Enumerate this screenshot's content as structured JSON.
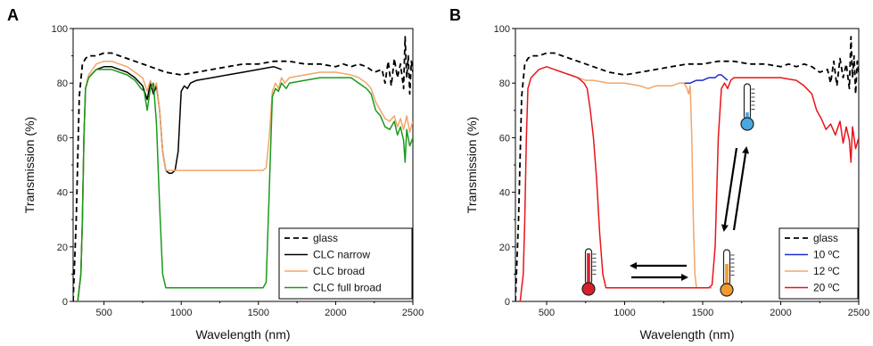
{
  "chart_data": [
    {
      "type": "line",
      "panel_label": "A",
      "xlabel": "Wavelength (nm)",
      "ylabel": "Transmission (%)",
      "xlim": [
        300,
        2500
      ],
      "ylim": [
        0,
        100
      ],
      "xticks": [
        500,
        1000,
        1500,
        2000,
        2500
      ],
      "yticks": [
        0,
        20,
        40,
        60,
        80,
        100
      ],
      "legend_position": "bottom-right",
      "series": [
        {
          "name": "glass",
          "color": "#000000",
          "dashed": true,
          "x": [
            300,
            320,
            340,
            360,
            380,
            400,
            450,
            500,
            550,
            600,
            700,
            800,
            900,
            1000,
            1100,
            1200,
            1300,
            1400,
            1500,
            1600,
            1700,
            1800,
            1900,
            2000,
            2050,
            2100,
            2150,
            2200,
            2250,
            2300,
            2320,
            2340,
            2360,
            2380,
            2400,
            2420,
            2440,
            2450,
            2460,
            2470,
            2480,
            2490,
            2500
          ],
          "y": [
            0,
            30,
            75,
            87,
            89,
            90,
            90,
            91,
            91,
            90,
            88,
            86,
            84,
            83,
            84,
            85,
            86,
            87,
            87,
            88,
            88,
            87,
            87,
            86,
            87,
            86,
            87,
            86,
            84,
            85,
            80,
            88,
            79,
            89,
            82,
            87,
            78,
            97,
            82,
            90,
            76,
            88,
            84
          ]
        },
        {
          "name": "CLC narrow",
          "color": "#000000",
          "dashed": false,
          "x": [
            330,
            350,
            360,
            370,
            380,
            400,
            450,
            500,
            550,
            600,
            650,
            700,
            750,
            780,
            800,
            820,
            840,
            860,
            880,
            900,
            920,
            940,
            960,
            980,
            1000,
            1020,
            1040,
            1060,
            1100,
            1200,
            1300,
            1400,
            1500,
            1600,
            1650
          ],
          "y": [
            0,
            10,
            30,
            60,
            78,
            82,
            85,
            86,
            86,
            85,
            84,
            82,
            79,
            74,
            80,
            76,
            79,
            70,
            55,
            48,
            47,
            47,
            48,
            55,
            77,
            79,
            78,
            80,
            81,
            82,
            83,
            84,
            85,
            86,
            85
          ]
        },
        {
          "name": "CLC broad",
          "color": "#f2a56b",
          "dashed": false,
          "x": [
            330,
            350,
            360,
            370,
            380,
            400,
            450,
            500,
            550,
            600,
            650,
            700,
            750,
            780,
            800,
            820,
            840,
            860,
            880,
            900,
            920,
            1000,
            1100,
            1200,
            1300,
            1400,
            1500,
            1530,
            1550,
            1570,
            1590,
            1610,
            1630,
            1650,
            1670,
            1700,
            1800,
            1900,
            2000,
            2100,
            2150,
            2200,
            2230,
            2260,
            2290,
            2320,
            2350,
            2380,
            2400,
            2420,
            2440,
            2460,
            2480,
            2500
          ],
          "y": [
            0,
            10,
            30,
            60,
            78,
            83,
            87,
            88,
            88,
            87,
            86,
            84,
            82,
            77,
            81,
            78,
            80,
            70,
            55,
            48,
            48,
            48,
            48,
            48,
            48,
            48,
            48,
            48,
            49,
            60,
            77,
            80,
            78,
            82,
            80,
            82,
            83,
            84,
            84,
            83,
            82,
            80,
            78,
            73,
            70,
            67,
            66,
            68,
            64,
            67,
            63,
            68,
            62,
            66
          ]
        },
        {
          "name": "CLC full broad",
          "color": "#1a9a1a",
          "dashed": false,
          "x": [
            330,
            350,
            360,
            370,
            380,
            400,
            450,
            500,
            550,
            600,
            650,
            700,
            740,
            760,
            780,
            800,
            820,
            840,
            860,
            880,
            900,
            1000,
            1100,
            1200,
            1300,
            1400,
            1500,
            1530,
            1550,
            1570,
            1590,
            1610,
            1630,
            1650,
            1680,
            1700,
            1800,
            1900,
            2000,
            2100,
            2150,
            2200,
            2230,
            2260,
            2290,
            2320,
            2350,
            2380,
            2400,
            2420,
            2440,
            2450,
            2460,
            2480,
            2500
          ],
          "y": [
            0,
            10,
            30,
            60,
            78,
            82,
            85,
            85,
            85,
            84,
            83,
            81,
            78,
            77,
            70,
            78,
            80,
            65,
            35,
            10,
            5,
            5,
            5,
            5,
            5,
            5,
            5,
            5,
            7,
            40,
            75,
            78,
            77,
            80,
            78,
            80,
            81,
            82,
            82,
            82,
            80,
            78,
            76,
            70,
            68,
            64,
            63,
            66,
            61,
            64,
            59,
            51,
            63,
            57,
            60
          ]
        }
      ]
    },
    {
      "type": "line",
      "panel_label": "B",
      "xlabel": "Wavelength (nm)",
      "ylabel": "Transmission (%)",
      "xlim": [
        300,
        2500
      ],
      "ylim": [
        0,
        100
      ],
      "xticks": [
        500,
        1000,
        1500,
        2000,
        2500
      ],
      "yticks": [
        0,
        20,
        40,
        60,
        80,
        100
      ],
      "legend_position": "bottom-right",
      "series": [
        {
          "name": "glass",
          "color": "#000000",
          "dashed": true,
          "x": [
            300,
            320,
            340,
            360,
            380,
            400,
            450,
            500,
            550,
            600,
            700,
            800,
            900,
            1000,
            1100,
            1200,
            1300,
            1400,
            1500,
            1600,
            1700,
            1800,
            1900,
            2000,
            2050,
            2100,
            2150,
            2200,
            2250,
            2300,
            2320,
            2340,
            2360,
            2380,
            2400,
            2420,
            2440,
            2450,
            2460,
            2470,
            2480,
            2490,
            2500
          ],
          "y": [
            0,
            30,
            75,
            87,
            89,
            90,
            90,
            91,
            91,
            90,
            88,
            86,
            84,
            83,
            84,
            85,
            86,
            87,
            87,
            88,
            88,
            87,
            87,
            86,
            87,
            86,
            87,
            86,
            84,
            85,
            80,
            88,
            79,
            89,
            82,
            87,
            78,
            97,
            82,
            90,
            76,
            88,
            84
          ]
        },
        {
          "name": "10 ºC",
          "color": "#1f2bd1",
          "dashed": false,
          "x": [
            1380,
            1420,
            1460,
            1500,
            1540,
            1580,
            1600,
            1620,
            1640,
            1660
          ],
          "y": [
            80,
            80,
            81,
            81,
            82,
            82,
            83,
            83,
            82,
            81
          ]
        },
        {
          "name": "12 ºC",
          "color": "#f2a56b",
          "dashed": false,
          "x": [
            700,
            750,
            800,
            900,
            1000,
            1100,
            1150,
            1200,
            1300,
            1350,
            1380,
            1400,
            1410,
            1420,
            1430,
            1440,
            1450,
            1460,
            1480,
            1500,
            1520,
            1540,
            1560
          ],
          "y": [
            82,
            81,
            81,
            80,
            80,
            79,
            78,
            79,
            79,
            80,
            80,
            78,
            76,
            79,
            60,
            30,
            10,
            5,
            5,
            5,
            5,
            5,
            5
          ]
        },
        {
          "name": "20 ºC",
          "color": "#e8141a",
          "dashed": false,
          "x": [
            330,
            350,
            360,
            370,
            380,
            400,
            450,
            500,
            550,
            600,
            650,
            700,
            740,
            760,
            780,
            800,
            820,
            840,
            860,
            880,
            900,
            1000,
            1100,
            1200,
            1300,
            1400,
            1500,
            1540,
            1560,
            1580,
            1600,
            1620,
            1640,
            1660,
            1680,
            1700,
            1800,
            1900,
            2000,
            2100,
            2150,
            2200,
            2230,
            2260,
            2290,
            2320,
            2350,
            2380,
            2400,
            2420,
            2440,
            2450,
            2460,
            2480,
            2500
          ],
          "y": [
            0,
            10,
            30,
            60,
            78,
            82,
            85,
            86,
            85,
            84,
            83,
            82,
            80,
            78,
            70,
            60,
            45,
            25,
            10,
            5,
            5,
            5,
            5,
            5,
            5,
            5,
            5,
            5,
            6,
            20,
            60,
            78,
            80,
            78,
            81,
            82,
            82,
            82,
            82,
            81,
            79,
            76,
            70,
            67,
            63,
            65,
            61,
            66,
            58,
            64,
            59,
            51,
            64,
            56,
            60
          ]
        }
      ]
    }
  ],
  "icons": {
    "thermometer_cold": "thermometer-cold-icon",
    "thermometer_warm": "thermometer-warm-icon",
    "thermometer_hot": "thermometer-hot-icon",
    "arrows": "switch-arrows-icon"
  }
}
